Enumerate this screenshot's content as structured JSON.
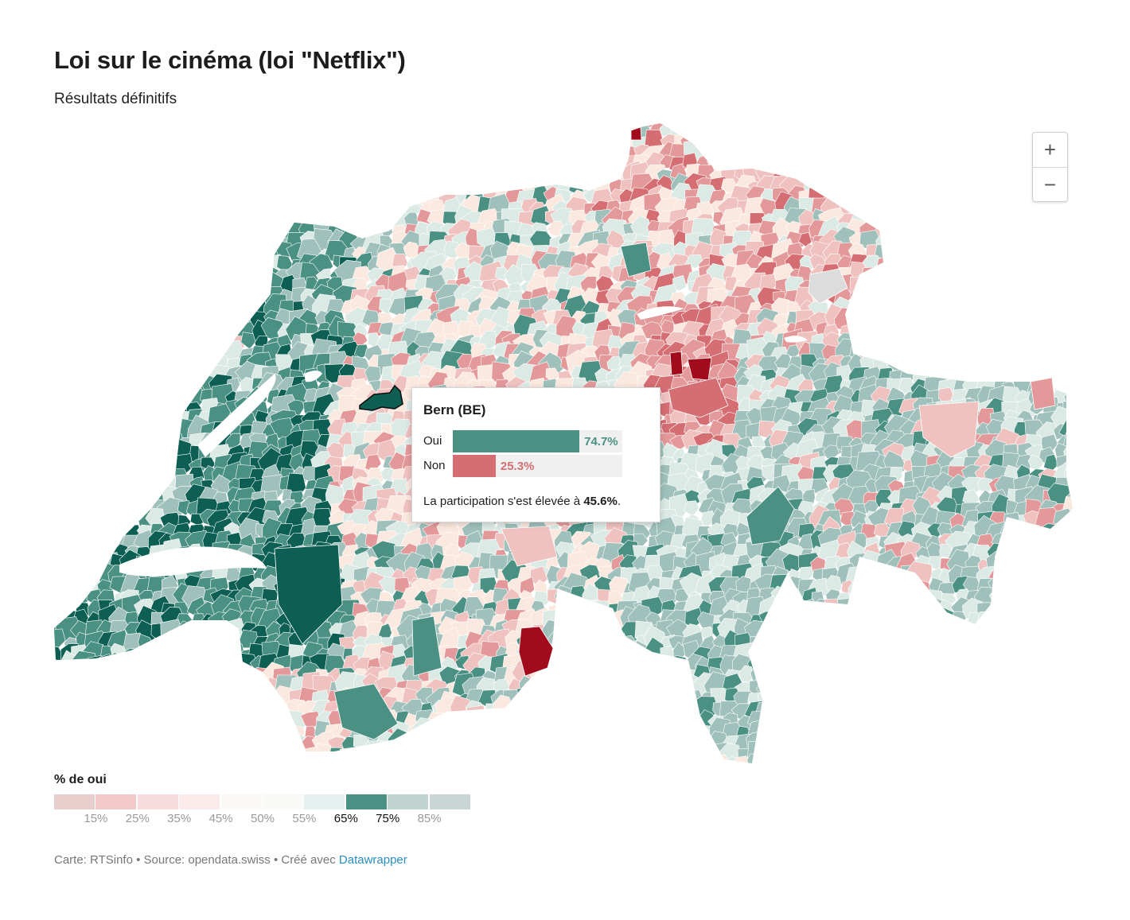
{
  "title": "Loi sur le cinéma (loi \"Netflix\")",
  "subtitle": "Résultats définitifs",
  "zoom": {
    "in_label": "+",
    "out_label": "−"
  },
  "tooltip": {
    "region": "Bern (BE)",
    "yes_label": "Oui",
    "yes_value": "74.7%",
    "yes_share": 0.747,
    "no_label": "Non",
    "no_value": "25.3%",
    "no_share": 0.253,
    "turnout_prefix": "La participation s'est élevée à ",
    "turnout_value": "45.6%",
    "turnout_suffix": "."
  },
  "legend": {
    "title": "% de oui",
    "colors": [
      "#e8cdcd",
      "#f1c9c9",
      "#f6dcdc",
      "#faeaea",
      "#fbf9f6",
      "#f9f9f7",
      "#e6f0ef",
      "#4a9184",
      "#bfd3d0",
      "#c9d6d5"
    ],
    "ticks": [
      "15%",
      "25%",
      "35%",
      "45%",
      "50%",
      "55%",
      "65%",
      "75%",
      "85%"
    ],
    "active_ticks": [
      6,
      7
    ]
  },
  "colors": {
    "strong_yes": "#0c5f52",
    "yes": "#4a9184",
    "mild_yes": "#9fc0bb",
    "slight_yes": "#dceae6",
    "neutral": "#fbe8de",
    "slight_no": "#efc2c0",
    "no": "#e3999a",
    "strong_no": "#d46e73",
    "very_strong_no": "#a20b1c",
    "no_data": "#dcdcdc"
  },
  "footer": {
    "text": "Carte: RTSinfo • Source: opendata.swiss • Créé avec ",
    "link": "Datawrapper"
  }
}
